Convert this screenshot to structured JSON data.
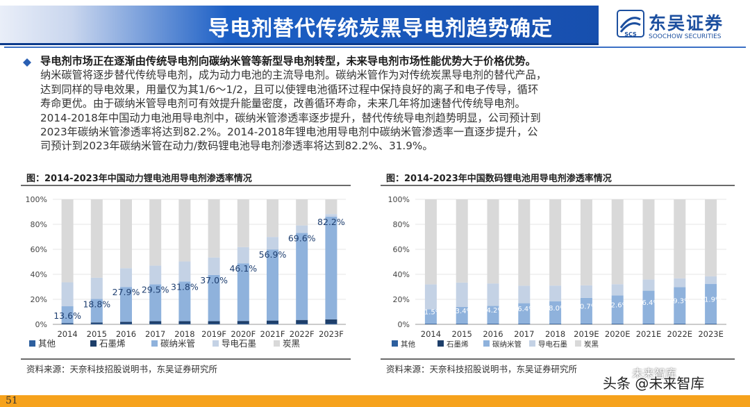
{
  "header": {
    "title": "导电剂替代传统炭黑导电剂趋势确定",
    "logo_cn": "东吴证券",
    "logo_en": "SOOCHOW SECURITIES",
    "logo_mark": "SCS"
  },
  "content": {
    "lead": "导电剂市场正在逐渐由传统导电剂向碳纳米管等新型导电剂转型，未来导电剂市场性能优势大于价格优势。",
    "paragraph_lines": [
      "纳米碳管将逐步替代传统导电剂，成为动力电池的主流导电剂。碳纳米管作为对传统炭黑导电剂的替代产品，",
      "达到同样的导电效果，用量仅为其1/6～1/2，且可以使锂电池循环过程中保持良好的离子和电子传导，循环",
      "寿命更优。由于碳纳米管导电剂可有效提升能量密度，改善循环寿命，未来几年将加速替代传统导电剂。",
      "2014-2018年中国动力电池用导电剂中，碳纳米管渗透率逐步提升，替代传统导电剂趋势明显，公司预计到",
      "2023年碳纳米管渗透率将达到82.2%。2014-2018年锂电池用导电剂中碳纳米管渗透率一直逐步提升，公",
      "司预计到2023年碳纳米管在动力/数码锂电池导电剂渗透率将达到82.2%、31.9%。"
    ]
  },
  "panels": {
    "left": {
      "title": "图：2014-2023年中国动力锂电池用导电剂渗透率情况",
      "source": "资料来源：天奈科技招股说明书，东吴证券研究所"
    },
    "right": {
      "title": "图：2014-2023年中国数码锂电池用导电剂渗透率情况",
      "source": "资料来源：天奈科技招股说明书，东吴证券研究所"
    }
  },
  "footer": {
    "page_number": "51",
    "watermark": "头条 @未来智库",
    "watermark_small": "未来智库"
  },
  "colors": {
    "other": "#2d5f9e",
    "graphite": "#1e3f6a",
    "cnt": "#8fb2dc",
    "conductive_graphite": "#c4d2e5",
    "carbon_black": "#d9d9d9",
    "accent": "#1c5fc5",
    "footer": "#f6a21c"
  },
  "chart_data": [
    {
      "type": "bar",
      "stacked": true,
      "title": "图：2014-2023年中国动力锂电池用导电剂渗透率情况",
      "categories": [
        "2014",
        "2015",
        "2016",
        "2017",
        "2018",
        "2019F",
        "2020F",
        "2021F",
        "2022F",
        "2023F"
      ],
      "series": [
        {
          "name": "其他",
          "values": [
            0.5,
            0.5,
            0.5,
            0.5,
            0.5,
            0.5,
            0.5,
            0.5,
            0.5,
            0.5
          ]
        },
        {
          "name": "石墨烯",
          "values": [
            0.5,
            1.0,
            1.5,
            2.0,
            2.0,
            2.0,
            2.2,
            2.5,
            3.0,
            3.5
          ]
        },
        {
          "name": "碳纳米管",
          "values": [
            13.6,
            18.8,
            27.9,
            29.5,
            31.8,
            37.0,
            46.1,
            56.9,
            69.6,
            82.2
          ]
        },
        {
          "name": "导电石墨",
          "values": [
            19.0,
            17.0,
            15.0,
            15.0,
            16.0,
            14.0,
            13.0,
            10.0,
            6.0,
            2.0
          ]
        },
        {
          "name": "炭黑",
          "values": [
            66.4,
            62.7,
            55.1,
            53.0,
            49.7,
            46.5,
            38.2,
            30.1,
            20.9,
            11.8
          ]
        }
      ],
      "data_labels": [
        "13.6%",
        "18.8%",
        "27.9%",
        "29.5%",
        "31.8%",
        "37.0%",
        "46.1%",
        "56.9%",
        "69.6%",
        "82.2%"
      ],
      "y_ticks": [
        "0%",
        "20%",
        "40%",
        "60%",
        "80%",
        "100%"
      ],
      "ylim": [
        0,
        100
      ],
      "legend": [
        "其他",
        "石墨烯",
        "碳纳米管",
        "导电石墨",
        "炭黑"
      ],
      "legend_position": "bottom"
    },
    {
      "type": "bar",
      "stacked": true,
      "title": "图：2014-2023年中国数码锂电池用导电剂渗透率情况",
      "categories": [
        "2014",
        "2015",
        "2016",
        "2017",
        "2018",
        "2019E",
        "2020E",
        "2021E",
        "2022E",
        "2023E"
      ],
      "series": [
        {
          "name": "其他",
          "values": [
            0.3,
            0.3,
            0.3,
            0.3,
            0.3,
            0.3,
            0.3,
            0.3,
            0.3,
            0.3
          ]
        },
        {
          "name": "石墨烯",
          "values": [
            0.2,
            0.2,
            0.2,
            0.2,
            0.2,
            0.2,
            0.2,
            0.2,
            0.2,
            0.2
          ]
        },
        {
          "name": "碳纳米管",
          "values": [
            11.5,
            13.4,
            14.2,
            16.4,
            18.0,
            20.7,
            22.6,
            26.4,
            29.3,
            31.9
          ]
        },
        {
          "name": "导电石墨",
          "values": [
            20.0,
            19.5,
            18.0,
            14.0,
            12.5,
            10.0,
            9.0,
            9.0,
            7.0,
            6.0
          ]
        },
        {
          "name": "炭黑",
          "values": [
            68.0,
            66.6,
            67.3,
            69.1,
            69.0,
            68.8,
            67.9,
            64.1,
            63.2,
            61.6
          ]
        }
      ],
      "data_labels": [
        "11.5%",
        "13.4%",
        "14.2%",
        "16.4%",
        "18.0%",
        "20.7%",
        "22.6%",
        "26.4%",
        "29.3%",
        "31.9%"
      ],
      "y_ticks": [
        "0%",
        "20%",
        "40%",
        "60%",
        "80%",
        "100%"
      ],
      "ylim": [
        0,
        100
      ],
      "legend": [
        "其他",
        "石墨烯",
        "碳纳米管",
        "导电石墨",
        "炭黑"
      ],
      "legend_position": "bottom"
    }
  ]
}
